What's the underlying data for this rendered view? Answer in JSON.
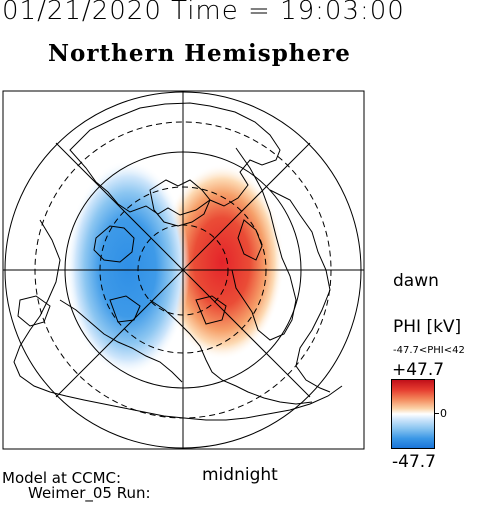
{
  "header": {
    "timestamp": "01/21/2020 Time = 19:03:00",
    "title": "Northern Hemisphere"
  },
  "map": {
    "orientation_labels": {
      "right": "dawn",
      "bottom": "midnight"
    },
    "colors": {
      "positive": "#e8322a",
      "negative": "#2f8fe6",
      "zero": "#ffffff"
    }
  },
  "colorbar": {
    "quantity_label": "PHI [kV]",
    "range_text": "-47.7<PHI<42",
    "max_label": "+47.7",
    "zero_label": "0",
    "min_label": "-47.7"
  },
  "footer": {
    "model_line1": "Model at CCMC:",
    "model_line2": "Weimer_05 Run:"
  }
}
